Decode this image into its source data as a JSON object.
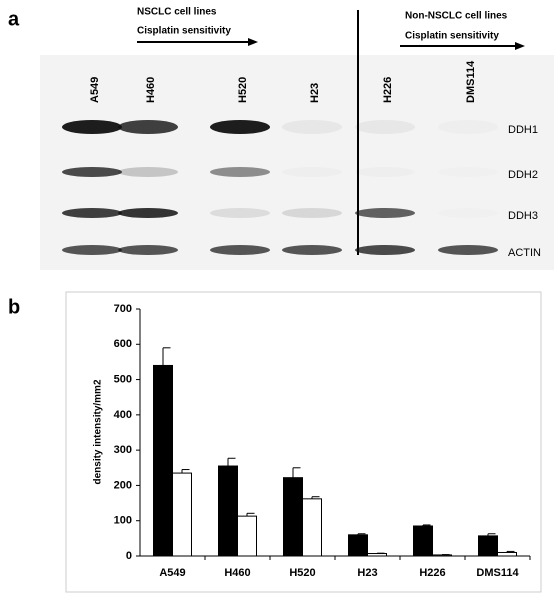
{
  "panel_a": {
    "label": "a",
    "nsclc_title": "NSCLC cell lines",
    "nsclc_subtitle": "Cisplatin sensitivity",
    "non_nsclc_title": "Non-NSCLC cell lines",
    "non_nsclc_subtitle": "Cisplatin sensitivity",
    "lanes": [
      "A549",
      "H460",
      "H520",
      "H23",
      "H226",
      "DMS114"
    ],
    "rows": [
      "DDH1",
      "DDH2",
      "DDH3",
      "ACTIN"
    ]
  },
  "chart_data": {
    "type": "bar",
    "panel_label": "b",
    "y_label": "density intensity/mm2",
    "categories": [
      "A549",
      "H460",
      "H520",
      "H23",
      "H226",
      "DMS114"
    ],
    "series": [
      {
        "color": "#000000",
        "values": [
          540,
          255,
          222,
          60,
          85,
          57
        ],
        "errors": [
          50,
          22,
          28,
          3,
          3,
          6
        ]
      },
      {
        "color": "#ffffff",
        "values": [
          235,
          113,
          162,
          7,
          3,
          10
        ],
        "errors": [
          10,
          8,
          6,
          1,
          1,
          3
        ]
      }
    ],
    "ylim": [
      0,
      700
    ],
    "yticks": [
      0,
      100,
      200,
      300,
      400,
      500,
      600,
      700
    ]
  }
}
